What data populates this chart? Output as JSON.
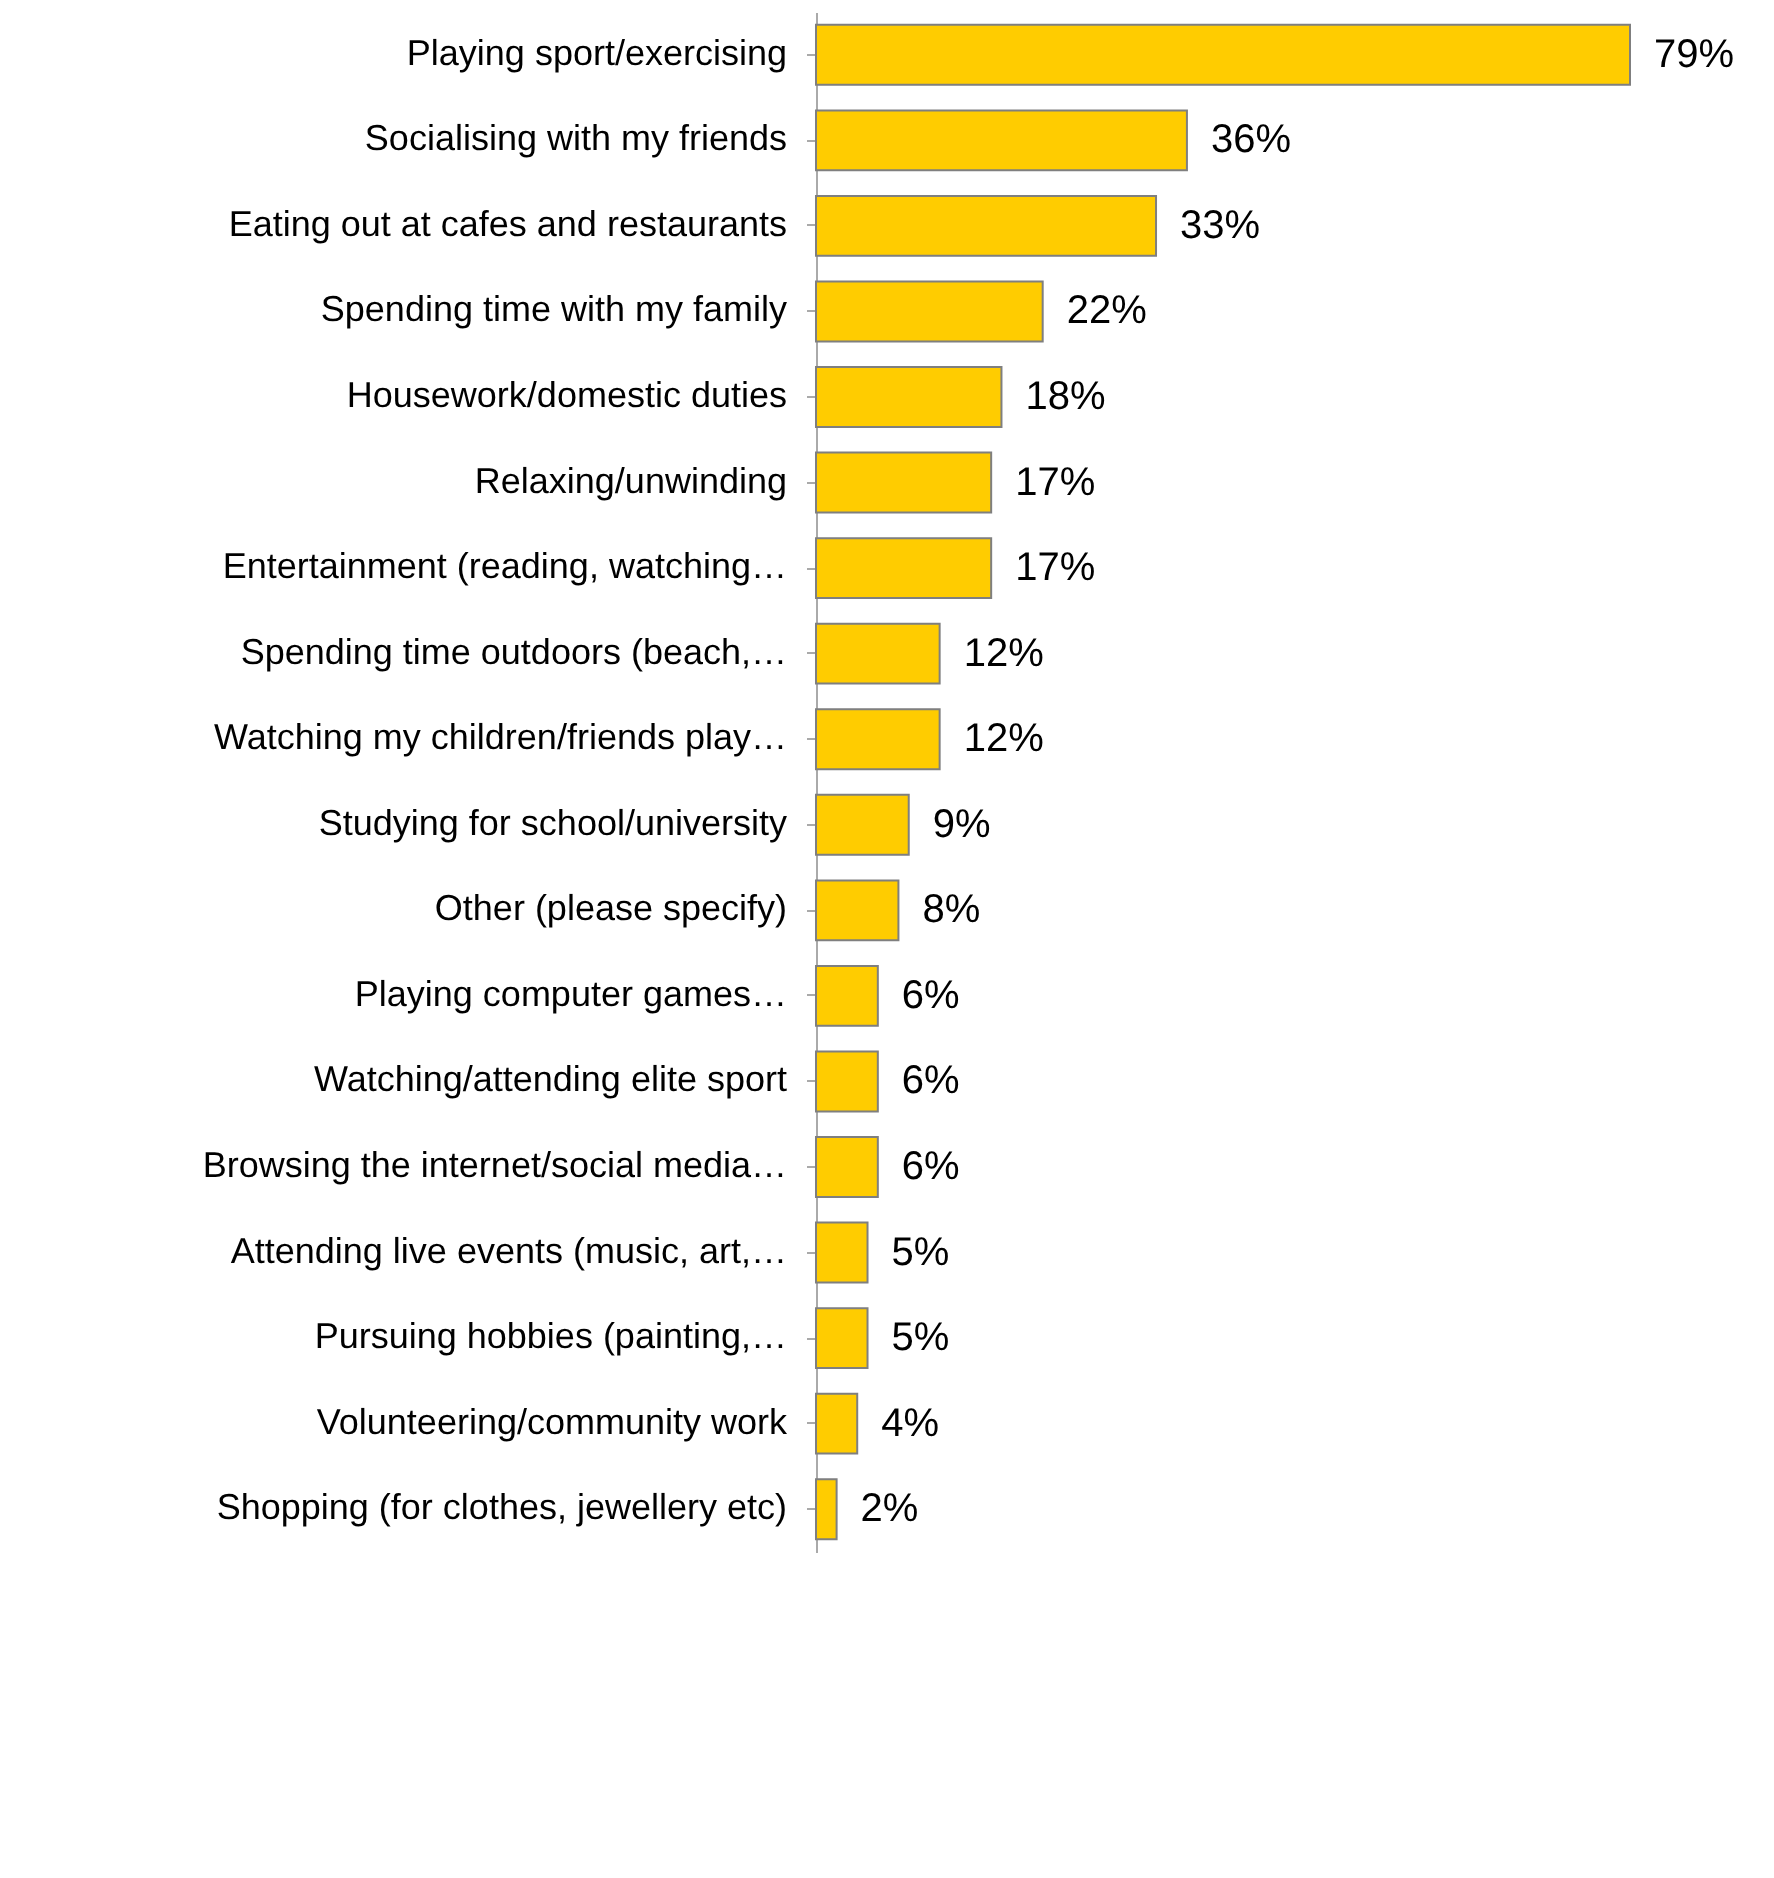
{
  "chart_data": {
    "type": "bar",
    "orientation": "horizontal",
    "color": "#ffcc00",
    "categories": [
      "Playing sport/exercising",
      "Socialising with my friends",
      "Eating out at cafes and restaurants",
      "Spending time with my family",
      "Housework/domestic duties",
      "Relaxing/unwinding",
      "Entertainment (reading, watching…",
      "Spending time outdoors (beach,…",
      "Watching my children/friends play…",
      "Studying for school/university",
      "Other (please specify)",
      "Playing computer games…",
      "Watching/attending elite sport",
      "Browsing the internet/social media…",
      "Attending live events (music, art,…",
      "Pursuing hobbies (painting,…",
      "Volunteering/community work",
      "Shopping (for clothes, jewellery etc)"
    ],
    "values": [
      79,
      36,
      33,
      22,
      18,
      17,
      17,
      12,
      12,
      9,
      8,
      6,
      6,
      6,
      5,
      5,
      4,
      2
    ],
    "value_labels": [
      "79%",
      "36%",
      "33%",
      "22%",
      "18%",
      "17%",
      "17%",
      "12%",
      "12%",
      "9%",
      "8%",
      "6%",
      "6%",
      "6%",
      "5%",
      "5%",
      "4%",
      "2%"
    ],
    "tick_labels": "y"
  }
}
